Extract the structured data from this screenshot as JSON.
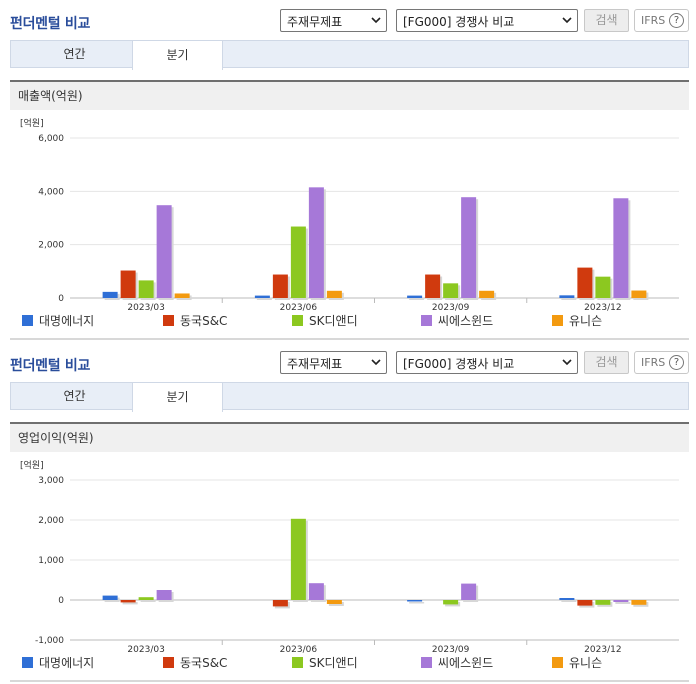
{
  "header": {
    "title": "펀더멘털 비교",
    "select_1": "주재무제표",
    "select_2": "[FG000] 경쟁사 비교",
    "search_label": "검색",
    "ifrs_label": "IFRS",
    "help_glyph": "?"
  },
  "tabs": [
    "연간",
    "분기"
  ],
  "colors": {
    "대명에너지": "#2f6fd6",
    "동국S&C": "#d03a0e",
    "SK디앤디": "#8cc820",
    "씨에스윈드": "#a678d8",
    "유니슨": "#f39a10"
  },
  "legend": [
    "대명에너지",
    "동국S&C",
    "SK디앤디",
    "씨에스윈드",
    "유니슨"
  ],
  "charts": [
    {
      "panel_title": "매출액(억원)",
      "unit": "[억원]",
      "chart_data": {
        "type": "bar",
        "categories": [
          "2023/03",
          "2023/06",
          "2023/09",
          "2023/12"
        ],
        "ylim": [
          0,
          6000
        ],
        "yticks": [
          0,
          2000,
          4000,
          6000
        ],
        "ytick_labels": [
          "0",
          "2,000",
          "4,000",
          "6,000"
        ],
        "series": [
          {
            "name": "대명에너지",
            "values": [
              230,
              90,
              90,
              100
            ]
          },
          {
            "name": "동국S&C",
            "values": [
              1030,
              880,
              880,
              1140
            ]
          },
          {
            "name": "SK디앤디",
            "values": [
              660,
              2680,
              550,
              800
            ]
          },
          {
            "name": "씨에스윈드",
            "values": [
              3480,
              4150,
              3780,
              3740
            ]
          },
          {
            "name": "유니슨",
            "values": [
              170,
              270,
              270,
              280
            ]
          }
        ]
      }
    },
    {
      "panel_title": "영업이익(억원)",
      "unit": "[억원]",
      "chart_data": {
        "type": "bar",
        "categories": [
          "2023/03",
          "2023/06",
          "2023/09",
          "2023/12"
        ],
        "ylim": [
          -1000,
          3000
        ],
        "yticks": [
          -1000,
          0,
          1000,
          2000,
          3000
        ],
        "ytick_labels": [
          "-1,000",
          "0",
          "1,000",
          "2,000",
          "3,000"
        ],
        "series": [
          {
            "name": "대명에너지",
            "values": [
              110,
              0,
              -30,
              50
            ]
          },
          {
            "name": "동국S&C",
            "values": [
              -60,
              -160,
              0,
              -140
            ]
          },
          {
            "name": "SK디앤디",
            "values": [
              70,
              2030,
              -110,
              -120
            ]
          },
          {
            "name": "씨에스윈드",
            "values": [
              250,
              420,
              410,
              -50
            ]
          },
          {
            "name": "유니슨",
            "values": [
              0,
              -100,
              0,
              -120
            ]
          }
        ]
      }
    }
  ]
}
